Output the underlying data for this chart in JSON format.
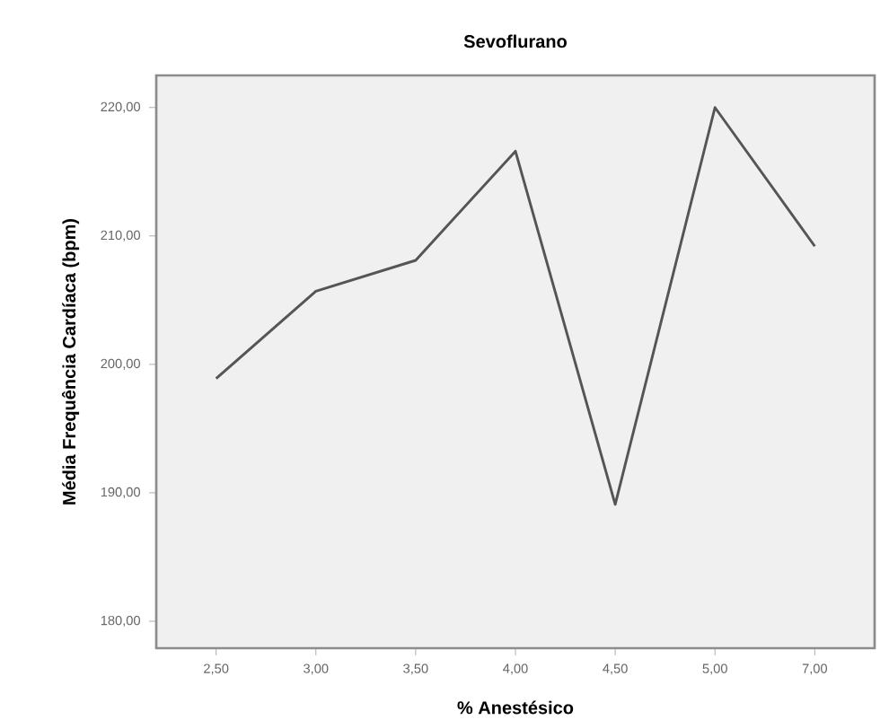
{
  "chart_data": {
    "type": "line",
    "title": "Sevoflurano",
    "xlabel": "% Anestésico",
    "ylabel": "Média Frequência Cardíaca (bpm)",
    "categories": [
      "2,50",
      "3,00",
      "3,50",
      "4,00",
      "4,50",
      "5,00",
      "7,00"
    ],
    "series": [
      {
        "color": "#555555",
        "values": [
          198.9,
          205.7,
          208.1,
          216.6,
          189.1,
          220.0,
          209.2
        ]
      }
    ],
    "ylim": [
      177.9,
      222.5
    ],
    "yticks": [
      {
        "value": 180,
        "label": "180,00"
      },
      {
        "value": 190,
        "label": "190,00"
      },
      {
        "value": 200,
        "label": "200,00"
      },
      {
        "value": 210,
        "label": "210,00"
      },
      {
        "value": 220,
        "label": "220,00"
      }
    ],
    "grid": false,
    "marker": "none",
    "line_style": "solid"
  }
}
